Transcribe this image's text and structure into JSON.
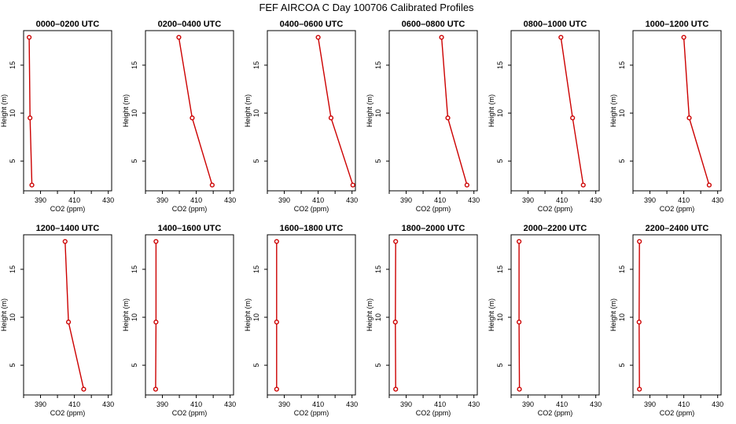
{
  "title": "FEF AIRCOA C  Day 100706  Calibrated Profiles",
  "colors": {
    "profile": "#cc0000",
    "axis": "#000000",
    "background": "#ffffff"
  },
  "chart_data": {
    "type": "line",
    "xlabel": "CO2 (ppm)",
    "ylabel": "Height (m)",
    "xlim": [
      380,
      432
    ],
    "ylim": [
      1.9,
      18.6
    ],
    "xticks": [
      390,
      410,
      430
    ],
    "xticks_minor": [
      380,
      400,
      420
    ],
    "yticks": [
      5,
      10,
      15
    ],
    "heights": [
      2.5,
      9.5,
      17.9
    ],
    "panels": [
      {
        "title": "0000–0200 UTC",
        "co2": [
          384.9,
          383.8,
          383.3
        ]
      },
      {
        "title": "0200–0400 UTC",
        "co2": [
          419.4,
          407.6,
          399.7
        ]
      },
      {
        "title": "0400–0600 UTC",
        "co2": [
          430.5,
          417.6,
          410.0
        ]
      },
      {
        "title": "0600–0800 UTC",
        "co2": [
          425.9,
          414.6,
          410.9
        ]
      },
      {
        "title": "0800–1000 UTC",
        "co2": [
          422.6,
          416.3,
          409.4
        ]
      },
      {
        "title": "1000–1200 UTC",
        "co2": [
          425.0,
          413.2,
          410.0
        ]
      },
      {
        "title": "1200–1400 UTC",
        "co2": [
          415.5,
          406.5,
          404.5
        ]
      },
      {
        "title": "1400–1600 UTC",
        "co2": [
          386.0,
          386.2,
          386.2
        ]
      },
      {
        "title": "1600–1800 UTC",
        "co2": [
          385.5,
          385.5,
          385.5
        ]
      },
      {
        "title": "1800–2000 UTC",
        "co2": [
          383.8,
          383.6,
          383.8
        ]
      },
      {
        "title": "2000–2200 UTC",
        "co2": [
          384.9,
          384.7,
          384.7
        ]
      },
      {
        "title": "2200–2400 UTC",
        "co2": [
          383.8,
          383.6,
          383.8
        ]
      }
    ]
  }
}
